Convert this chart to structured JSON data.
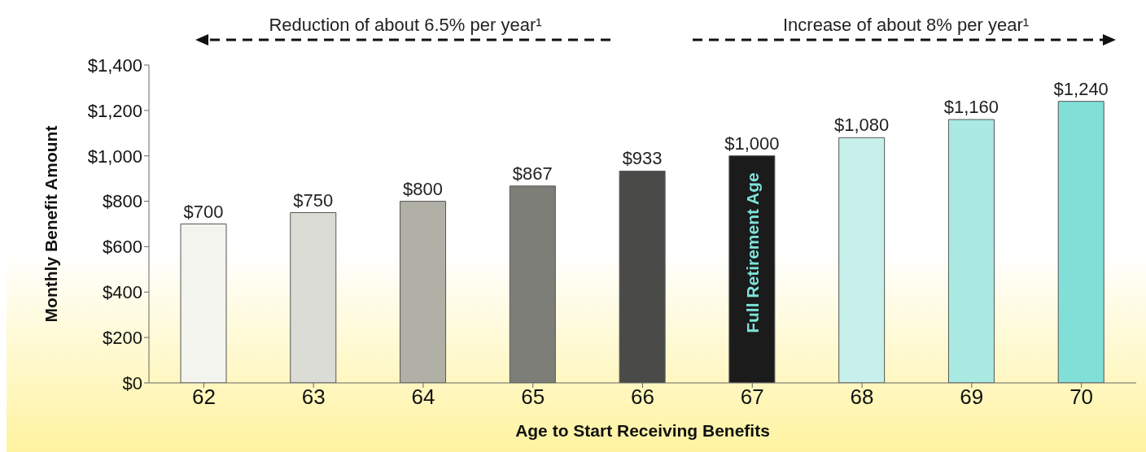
{
  "chart_data": {
    "type": "bar",
    "xlabel": "Age to Start Receiving Benefits",
    "ylabel": "Monthly Benefit Amount",
    "categories": [
      "62",
      "63",
      "64",
      "65",
      "66",
      "67",
      "68",
      "69",
      "70"
    ],
    "values": [
      700,
      750,
      800,
      867,
      933,
      1000,
      1080,
      1160,
      1240
    ],
    "value_labels": [
      "$700",
      "$750",
      "$800",
      "$867",
      "$933",
      "$1,000",
      "$1,080",
      "$1,160",
      "$1,240"
    ],
    "colors": [
      "#f4f4ee",
      "#dcdcd6",
      "#b0b0a6",
      "#7e7e78",
      "#4a4a48",
      "#1b1b1b",
      "#c8f0ea",
      "#a9eae2",
      "#80e0d8"
    ],
    "ylim": [
      0,
      1400
    ],
    "yticks": [
      {
        "value": 0,
        "label": "$0"
      },
      {
        "value": 200,
        "label": "$200"
      },
      {
        "value": 400,
        "label": "$400"
      },
      {
        "value": 600,
        "label": "$600"
      },
      {
        "value": 800,
        "label": "$800"
      },
      {
        "value": 1000,
        "label": "$1,000"
      },
      {
        "value": 1200,
        "label": "$1,200"
      },
      {
        "value": 1400,
        "label": "$1,400"
      }
    ],
    "grid": false,
    "legend": false,
    "annotations": [
      "Reduction of about 6.5% per year¹",
      "Increase of about 8% per year¹",
      "Full Retirement Age"
    ]
  }
}
